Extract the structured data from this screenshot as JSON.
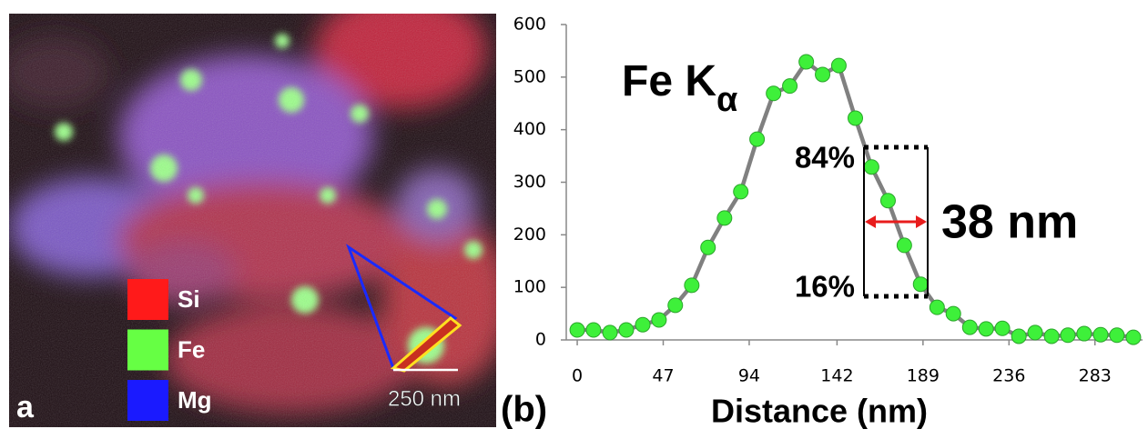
{
  "image_panel": {
    "panel_label": "a",
    "scale_bar": "250 nm",
    "legend": [
      {
        "name": "Si",
        "color": "#ff1a1a"
      },
      {
        "name": "Fe",
        "color": "#66ff44"
      },
      {
        "name": "Mg",
        "color": "#1a1aff"
      }
    ]
  },
  "chart_data": {
    "type": "line",
    "panel_label": "(b)",
    "annotation": "Fe K",
    "annotation_subscript": "α",
    "upper_level_label": "84%",
    "lower_level_label": "16%",
    "width_label": "38 nm",
    "x_label": "Distance (nm)",
    "x": [
      0,
      8.9,
      17.9,
      26.8,
      35.8,
      44.7,
      53.6,
      62.6,
      71.5,
      80.5,
      89.4,
      98.3,
      107.3,
      116.2,
      125.2,
      134.1,
      143.0,
      152.0,
      160.9,
      169.9,
      178.8,
      187.7,
      196.7,
      205.6,
      214.6,
      223.5,
      232.4,
      241.4,
      250.3,
      259.3,
      268.2,
      277.1,
      286.1,
      295.0,
      304.0
    ],
    "values": [
      19,
      19,
      14,
      19,
      29,
      38,
      66,
      104,
      176,
      232,
      282,
      382,
      469,
      483,
      529,
      505,
      522,
      422,
      329,
      265,
      180,
      106,
      62,
      50,
      24,
      21,
      22,
      7,
      14,
      7,
      9,
      12,
      10,
      9,
      5
    ],
    "color": "#808080",
    "marker_color": "#3ef03a",
    "marker_edge": "#2aa52a",
    "xlim": [
      -6,
      309
    ],
    "xticks": [
      0,
      47,
      94,
      142,
      189,
      236,
      283
    ],
    "ylim": [
      0,
      600
    ],
    "yticks": [
      0,
      100,
      200,
      300,
      400,
      500,
      600
    ],
    "grid": false
  }
}
